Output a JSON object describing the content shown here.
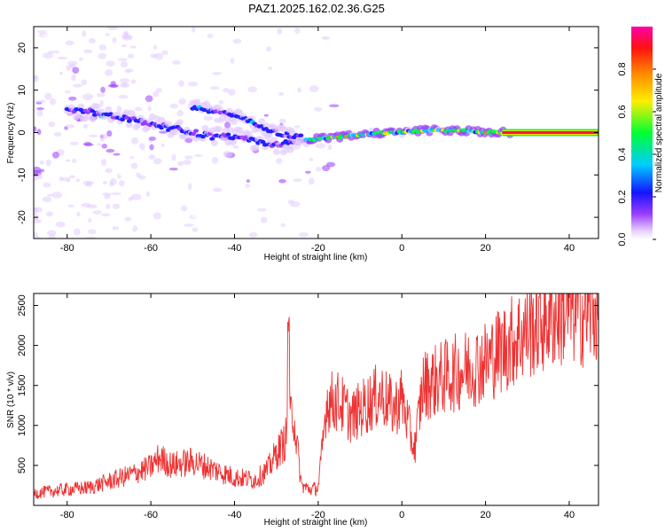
{
  "title": "PAZ1.2025.162.02.36.G25",
  "chart_data": [
    {
      "type": "heatmap",
      "xlabel": "Height of straight line (km)",
      "ylabel": "Frequency (Hz)",
      "xlim": [
        -88,
        47
      ],
      "ylim": [
        -25,
        25
      ],
      "x_ticks": [
        -80,
        -60,
        -40,
        -20,
        0,
        20,
        40
      ],
      "y_ticks": [
        -20,
        -10,
        0,
        10,
        20
      ],
      "colorbar": {
        "label": "Normalized spectral amplitude",
        "range": [
          0,
          1
        ],
        "ticks": [
          0.0,
          0.2,
          0.4,
          0.6,
          0.8
        ],
        "colormap": "rainbow (white-violet-blue-cyan-green-yellow-orange-red-magenta)"
      },
      "ridge": [
        {
          "x": -80,
          "y": 5
        },
        {
          "x": -75,
          "y": 5
        },
        {
          "x": -70,
          "y": 4
        },
        {
          "x": -65,
          "y": 3
        },
        {
          "x": -60,
          "y": 2
        },
        {
          "x": -55,
          "y": 1
        },
        {
          "x": -50,
          "y": 0
        },
        {
          "x": -45,
          "y": -1
        },
        {
          "x": -40,
          "y": -1
        },
        {
          "x": -35,
          "y": -2
        },
        {
          "x": -30,
          "y": -3
        },
        {
          "x": -25,
          "y": -2
        },
        {
          "x": -20,
          "y": -1.5
        },
        {
          "x": -15,
          "y": -1
        },
        {
          "x": -10,
          "y": -0.5
        },
        {
          "x": -5,
          "y": 0
        },
        {
          "x": 0,
          "y": 0
        },
        {
          "x": 5,
          "y": 0.5
        },
        {
          "x": 10,
          "y": 0.5
        },
        {
          "x": 15,
          "y": 0.5
        },
        {
          "x": 20,
          "y": 0
        },
        {
          "x": 25,
          "y": 0
        },
        {
          "x": 30,
          "y": 0
        },
        {
          "x": 40,
          "y": 0
        },
        {
          "x": 47,
          "y": 0
        }
      ],
      "secondary_ridge": [
        {
          "x": -50,
          "y": 6
        },
        {
          "x": -45,
          "y": 5
        },
        {
          "x": -40,
          "y": 4
        },
        {
          "x": -35,
          "y": 2
        },
        {
          "x": -30,
          "y": 0
        },
        {
          "x": -25,
          "y": -1
        }
      ]
    },
    {
      "type": "line",
      "xlabel": "Height of straight line (km)",
      "ylabel": "SNR (10 * v/v)",
      "xlim": [
        -88,
        47
      ],
      "ylim": [
        0,
        2650
      ],
      "x_ticks": [
        -80,
        -60,
        -40,
        -20,
        0,
        20,
        40
      ],
      "y_ticks": [
        500,
        1000,
        1500,
        2000,
        2500
      ],
      "series": [
        {
          "color": "#ee3333",
          "x": [
            -88,
            -85,
            -80,
            -75,
            -70,
            -65,
            -60,
            -58,
            -55,
            -50,
            -45,
            -40,
            -35,
            -32,
            -30,
            -28,
            -26,
            -24,
            -22,
            -20,
            -19,
            -18,
            -15,
            -12,
            -10,
            -5,
            -2,
            0,
            2,
            3,
            5,
            10,
            15,
            20,
            25,
            30,
            35,
            40,
            45,
            47
          ],
          "y": [
            150,
            170,
            200,
            220,
            300,
            380,
            480,
            600,
            500,
            550,
            450,
            350,
            320,
            450,
            650,
            800,
            1200,
            250,
            200,
            220,
            700,
            1300,
            1300,
            1100,
            1200,
            1400,
            1200,
            1350,
            900,
            700,
            1500,
            1600,
            1700,
            1800,
            2000,
            2200,
            2350,
            2450,
            2400,
            2450
          ]
        }
      ]
    }
  ]
}
